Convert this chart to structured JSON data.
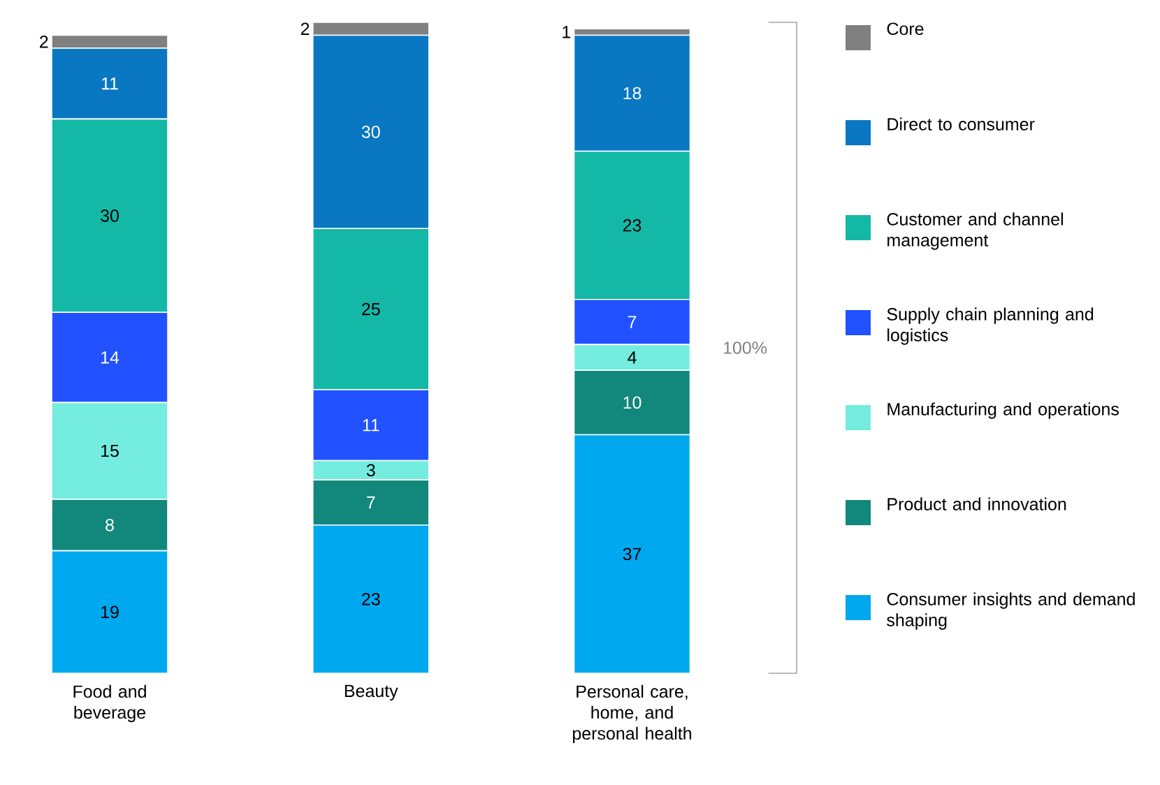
{
  "chart_data": {
    "type": "bar",
    "stacked": true,
    "data_labels": true,
    "legend": "right",
    "categories": [
      "Food and beverage",
      "Beauty",
      "Personal care, home, and personal health"
    ],
    "series": [
      {
        "name": "Consumer insights and demand shaping",
        "color": "#00a8f0",
        "values": [
          19,
          23,
          37
        ]
      },
      {
        "name": "Product and innovation",
        "color": "#12877b",
        "values": [
          8,
          7,
          10
        ]
      },
      {
        "name": "Manufacturing and operations",
        "color": "#74ece0",
        "values": [
          15,
          3,
          4
        ]
      },
      {
        "name": "Supply chain planning and logistics",
        "color": "#2251ff",
        "values": [
          14,
          11,
          7
        ]
      },
      {
        "name": "Customer and channel management",
        "color": "#14b8a6",
        "values": [
          30,
          25,
          23
        ]
      },
      {
        "name": "Direct to consumer",
        "color": "#0a77c2",
        "values": [
          11,
          30,
          18
        ]
      },
      {
        "name": "Core",
        "color": "#808080",
        "values": [
          2,
          2,
          1
        ]
      }
    ],
    "annotations": [
      "100%"
    ]
  }
}
